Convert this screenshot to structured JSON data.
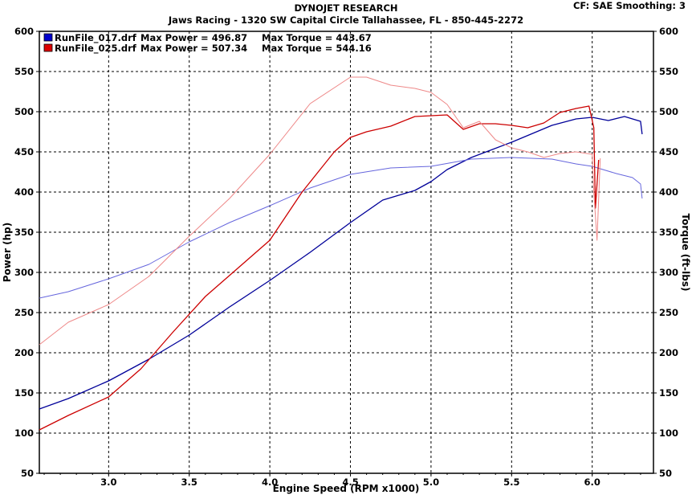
{
  "header": {
    "title": "DYNOJET RESEARCH",
    "subtitle": "Jaws Racing - 1320 SW Capital Circle Tallahassee, FL - 850-445-2272",
    "settings": "CF: SAE  Smoothing: 3"
  },
  "chart_data": {
    "type": "line",
    "xlabel": "Engine Speed (RPM x1000)",
    "ylabel_left": "Power (hp)",
    "ylabel_right": "Torque (ft-lbs)",
    "xlim": [
      2.57,
      6.38
    ],
    "ylim_left": [
      50,
      600
    ],
    "ylim_right": [
      50,
      600
    ],
    "x_ticks": [
      "3.0",
      "3.5",
      "4.0",
      "4.5",
      "5.0",
      "5.5",
      "6.0"
    ],
    "y_ticks": [
      "50",
      "100",
      "150",
      "200",
      "250",
      "300",
      "350",
      "400",
      "450",
      "500",
      "550",
      "600"
    ],
    "grid": true,
    "legend": [
      {
        "label": "RunFile_017.drf",
        "power_text": "Max Power = 496.87",
        "torque_text": "Max Torque = 443.67",
        "color": "#0000cc"
      },
      {
        "label": "RunFile_025.drf",
        "power_text": "Max Power = 507.34",
        "torque_text": "Max Torque = 544.16",
        "color": "#dd0000"
      }
    ],
    "series": [
      {
        "name": "RunFile_017.drf",
        "measure": "power",
        "color": "#000099",
        "x": [
          2.57,
          2.75,
          3.0,
          3.25,
          3.5,
          3.75,
          4.0,
          4.25,
          4.5,
          4.7,
          4.9,
          5.0,
          5.1,
          5.25,
          5.5,
          5.75,
          5.9,
          6.0,
          6.1,
          6.2,
          6.3,
          6.31
        ],
        "y": [
          130,
          143,
          165,
          192,
          222,
          257,
          290,
          325,
          362,
          390,
          402,
          413,
          428,
          443,
          462,
          483,
          491,
          493,
          489,
          494,
          488,
          472
        ]
      },
      {
        "name": "RunFile_017.drf",
        "measure": "torque",
        "color": "#6666dd",
        "x": [
          2.57,
          2.75,
          3.0,
          3.25,
          3.5,
          3.75,
          4.0,
          4.25,
          4.5,
          4.75,
          5.0,
          5.25,
          5.5,
          5.75,
          5.9,
          6.0,
          6.15,
          6.25,
          6.3,
          6.31
        ],
        "y": [
          268,
          276,
          292,
          310,
          338,
          362,
          383,
          405,
          422,
          430,
          432,
          441,
          443,
          441,
          435,
          432,
          423,
          418,
          410,
          392
        ]
      },
      {
        "name": "RunFile_025.drf",
        "measure": "power",
        "color": "#cc0000",
        "x": [
          2.57,
          2.75,
          3.0,
          3.2,
          3.4,
          3.6,
          3.8,
          4.0,
          4.2,
          4.4,
          4.5,
          4.6,
          4.75,
          4.9,
          5.0,
          5.1,
          5.2,
          5.3,
          5.4,
          5.5,
          5.6,
          5.7,
          5.8,
          5.9,
          5.98,
          6.01,
          6.02,
          6.04
        ],
        "y": [
          104,
          122,
          145,
          180,
          226,
          270,
          305,
          340,
          400,
          450,
          468,
          475,
          482,
          494,
          495,
          496,
          478,
          485,
          485,
          483,
          480,
          486,
          499,
          504,
          507,
          480,
          380,
          440
        ]
      },
      {
        "name": "RunFile_025.drf",
        "measure": "torque",
        "color": "#ee8888",
        "x": [
          2.57,
          2.75,
          3.0,
          3.25,
          3.5,
          3.75,
          4.0,
          4.25,
          4.5,
          4.6,
          4.75,
          4.9,
          5.0,
          5.1,
          5.2,
          5.3,
          5.4,
          5.5,
          5.6,
          5.7,
          5.8,
          5.9,
          6.0,
          6.01,
          6.03,
          6.05
        ],
        "y": [
          210,
          238,
          260,
          295,
          345,
          392,
          447,
          510,
          543,
          543,
          533,
          529,
          524,
          509,
          480,
          488,
          465,
          455,
          450,
          443,
          448,
          450,
          447,
          400,
          340,
          442
        ]
      }
    ]
  }
}
